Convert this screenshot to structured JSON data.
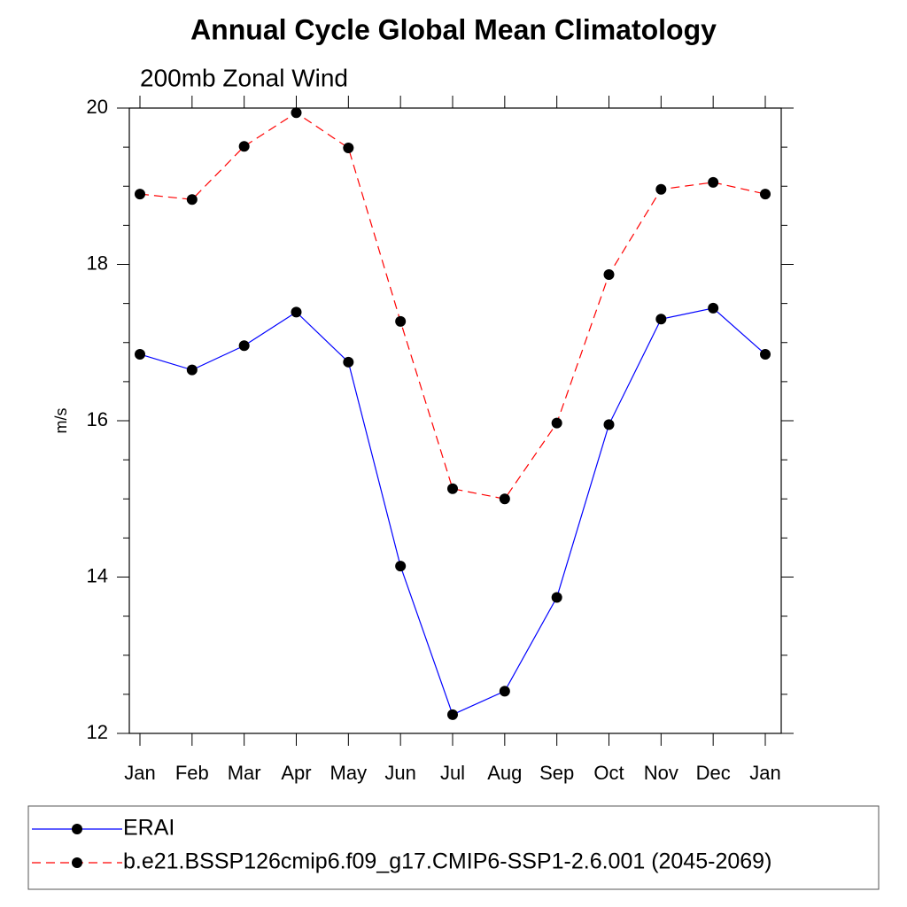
{
  "chart_data": {
    "type": "line",
    "title": "Annual Cycle Global Mean Climatology",
    "subtitle": "200mb Zonal Wind",
    "y_label": "m/s",
    "categories": [
      "Jan",
      "Feb",
      "Mar",
      "Apr",
      "May",
      "Jun",
      "Jul",
      "Aug",
      "Sep",
      "Oct",
      "Nov",
      "Dec",
      "Jan"
    ],
    "series": [
      {
        "name": "ERAI",
        "color": "#0000ff",
        "line_style": "solid",
        "values": [
          16.85,
          16.65,
          16.96,
          17.39,
          16.75,
          14.14,
          12.24,
          12.54,
          13.74,
          15.95,
          17.3,
          17.44,
          16.85
        ]
      },
      {
        "name": "b.e21.BSSP126cmip6.f09_g17.CMIP6-SSP1-2.6.001 (2045-2069)",
        "color": "#ff0000",
        "line_style": "dashed",
        "values": [
          18.9,
          18.83,
          19.51,
          19.94,
          19.49,
          17.27,
          15.13,
          15.0,
          15.97,
          17.87,
          18.96,
          19.05,
          18.9
        ]
      }
    ],
    "ylim": [
      12,
      20
    ],
    "yticks": [
      12,
      14,
      16,
      18,
      20
    ],
    "yminorticks": [
      12.5,
      13,
      13.5,
      14.5,
      15,
      15.5,
      16.5,
      17,
      17.5,
      18.5,
      19,
      19.5
    ],
    "legend": "bottom"
  }
}
